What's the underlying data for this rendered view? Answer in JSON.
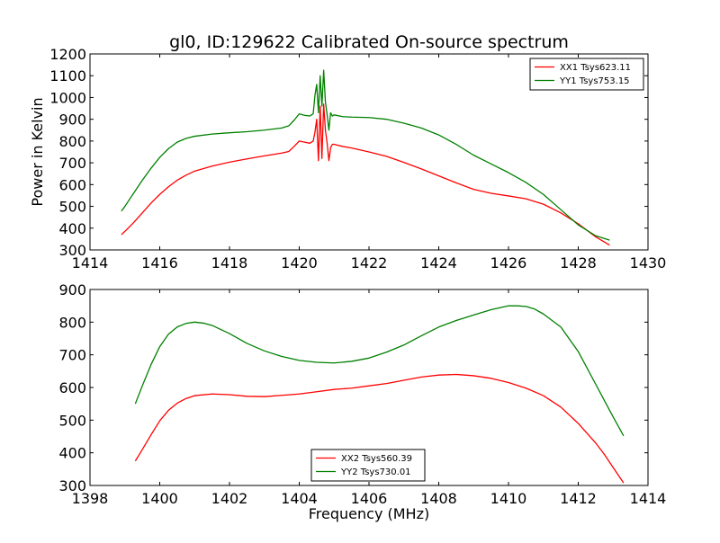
{
  "figure": {
    "title": "gl0, ID:129622 Calibrated On-source spectrum"
  },
  "chart_data": [
    {
      "type": "line",
      "title": "gl0, ID:129622 Calibrated On-source spectrum",
      "xlabel": "",
      "ylabel": "Power in Kelvin",
      "xlim": [
        1414,
        1430
      ],
      "ylim": [
        300,
        1200
      ],
      "xticks": [
        1414,
        1416,
        1418,
        1420,
        1422,
        1424,
        1426,
        1428,
        1430
      ],
      "yticks": [
        300,
        400,
        500,
        600,
        700,
        800,
        900,
        1000,
        1100,
        1200
      ],
      "grid": false,
      "legend_position": "upper right",
      "series": [
        {
          "name": "XX1 Tsys623.11",
          "color": "#ff0000",
          "x": [
            1414.9,
            1415.0,
            1415.25,
            1415.5,
            1415.75,
            1416.0,
            1416.25,
            1416.5,
            1416.75,
            1417.0,
            1417.5,
            1418.0,
            1418.5,
            1419.0,
            1419.5,
            1419.7,
            1419.85,
            1420.0,
            1420.15,
            1420.3,
            1420.4,
            1420.45,
            1420.5,
            1420.55,
            1420.6,
            1420.65,
            1420.7,
            1420.75,
            1420.8,
            1420.85,
            1420.9,
            1420.95,
            1421.0,
            1421.25,
            1421.5,
            1422.0,
            1422.5,
            1423.0,
            1423.5,
            1424.0,
            1424.5,
            1425.0,
            1425.5,
            1426.0,
            1426.5,
            1427.0,
            1427.5,
            1428.0,
            1428.5,
            1428.9
          ],
          "y": [
            370,
            385,
            425,
            470,
            515,
            555,
            590,
            620,
            643,
            662,
            685,
            703,
            718,
            732,
            745,
            752,
            775,
            800,
            795,
            790,
            800,
            840,
            900,
            710,
            960,
            720,
            970,
            850,
            790,
            710,
            770,
            785,
            785,
            775,
            768,
            750,
            730,
            702,
            672,
            640,
            608,
            578,
            560,
            548,
            535,
            510,
            470,
            420,
            360,
            322
          ]
        },
        {
          "name": "YY1 Tsys753.15",
          "color": "#008000",
          "x": [
            1414.9,
            1415.0,
            1415.25,
            1415.5,
            1415.75,
            1416.0,
            1416.25,
            1416.5,
            1416.75,
            1417.0,
            1417.5,
            1418.0,
            1418.5,
            1419.0,
            1419.5,
            1419.7,
            1419.85,
            1420.0,
            1420.15,
            1420.3,
            1420.4,
            1420.45,
            1420.5,
            1420.55,
            1420.6,
            1420.65,
            1420.7,
            1420.75,
            1420.8,
            1420.85,
            1420.9,
            1420.95,
            1421.0,
            1421.25,
            1421.5,
            1422.0,
            1422.5,
            1423.0,
            1423.5,
            1424.0,
            1424.5,
            1425.0,
            1425.5,
            1426.0,
            1426.5,
            1427.0,
            1427.5,
            1428.0,
            1428.5,
            1428.9
          ],
          "y": [
            478,
            500,
            560,
            620,
            675,
            725,
            765,
            795,
            812,
            822,
            832,
            838,
            843,
            850,
            860,
            870,
            895,
            925,
            918,
            915,
            925,
            1010,
            1060,
            930,
            1100,
            960,
            1125,
            980,
            920,
            850,
            930,
            915,
            920,
            912,
            910,
            908,
            900,
            882,
            860,
            828,
            785,
            735,
            695,
            655,
            610,
            555,
            485,
            415,
            365,
            345
          ]
        }
      ]
    },
    {
      "type": "line",
      "title": "",
      "xlabel": "Frequency (MHz)",
      "ylabel": "",
      "xlim": [
        1398,
        1414
      ],
      "ylim": [
        300,
        900
      ],
      "xticks": [
        1398,
        1400,
        1402,
        1404,
        1406,
        1408,
        1410,
        1412,
        1414
      ],
      "yticks": [
        300,
        400,
        500,
        600,
        700,
        800,
        900
      ],
      "grid": false,
      "legend_position": "lower center",
      "series": [
        {
          "name": "XX2 Tsys560.39",
          "color": "#ff0000",
          "x": [
            1399.3,
            1399.5,
            1399.75,
            1400.0,
            1400.25,
            1400.5,
            1400.75,
            1401.0,
            1401.5,
            1402.0,
            1402.5,
            1403.0,
            1403.5,
            1404.0,
            1404.5,
            1405.0,
            1405.5,
            1406.0,
            1406.5,
            1407.0,
            1407.5,
            1408.0,
            1408.5,
            1409.0,
            1409.5,
            1410.0,
            1410.5,
            1411.0,
            1411.5,
            1412.0,
            1412.5,
            1412.75,
            1413.0,
            1413.3
          ],
          "y": [
            375,
            410,
            455,
            498,
            530,
            552,
            566,
            575,
            580,
            578,
            573,
            572,
            576,
            580,
            587,
            594,
            598,
            605,
            612,
            622,
            632,
            638,
            640,
            636,
            628,
            615,
            598,
            575,
            540,
            490,
            430,
            395,
            355,
            308
          ]
        },
        {
          "name": "YY2 Tsys730.01",
          "color": "#008000",
          "x": [
            1399.3,
            1399.5,
            1399.75,
            1400.0,
            1400.25,
            1400.5,
            1400.75,
            1401.0,
            1401.25,
            1401.5,
            1402.0,
            1402.5,
            1403.0,
            1403.5,
            1404.0,
            1404.5,
            1405.0,
            1405.5,
            1406.0,
            1406.5,
            1407.0,
            1407.5,
            1408.0,
            1408.5,
            1409.0,
            1409.5,
            1410.0,
            1410.25,
            1410.5,
            1410.75,
            1411.0,
            1411.5,
            1412.0,
            1412.5,
            1412.75,
            1413.0,
            1413.3
          ],
          "y": [
            550,
            605,
            670,
            725,
            763,
            785,
            796,
            800,
            797,
            790,
            765,
            735,
            712,
            695,
            683,
            677,
            675,
            680,
            690,
            708,
            730,
            758,
            785,
            805,
            822,
            838,
            850,
            850,
            848,
            840,
            825,
            785,
            710,
            610,
            560,
            510,
            452
          ]
        }
      ]
    }
  ]
}
